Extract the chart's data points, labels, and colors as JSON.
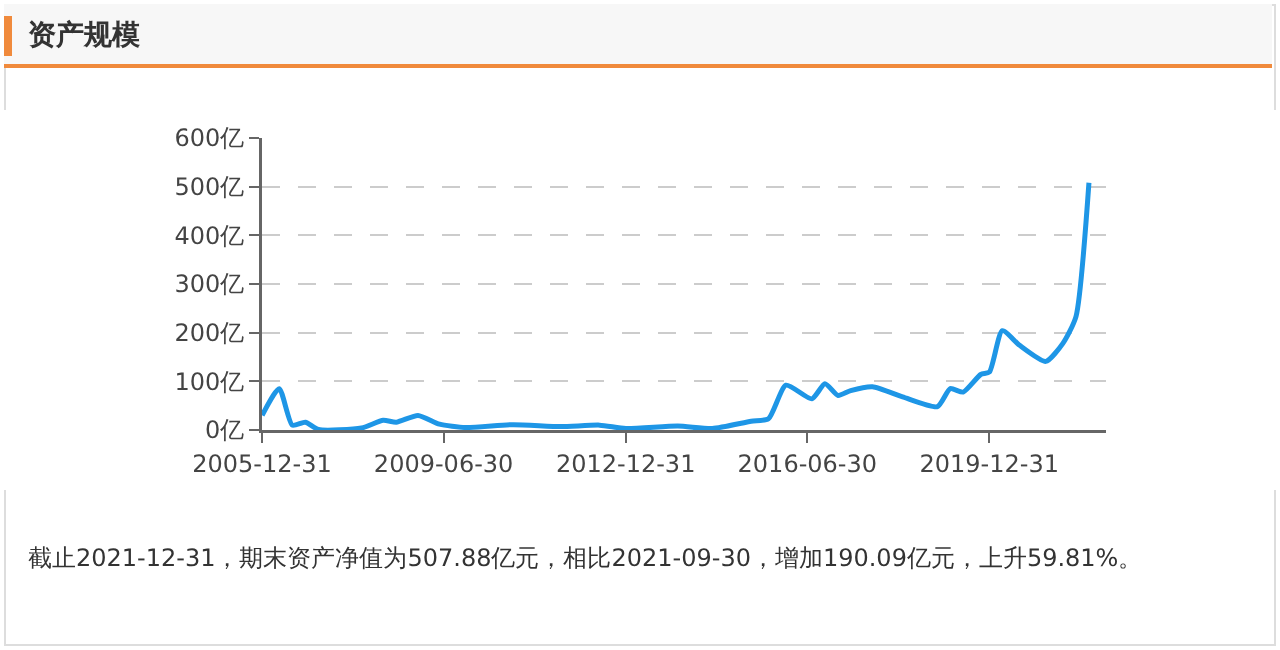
{
  "chart_data": {
    "type": "line",
    "title": "资产规模",
    "x": [
      "2006-01",
      "2006-05",
      "2006-08",
      "2006-11",
      "2007-02",
      "2007-12",
      "2008-05",
      "2008-08",
      "2009-01",
      "2009-06",
      "2009-12",
      "2010-11",
      "2011-10",
      "2012-07",
      "2013-01",
      "2014-01",
      "2014-09",
      "2015-06",
      "2015-10",
      "2016-02",
      "2016-08",
      "2016-11",
      "2017-02",
      "2017-05",
      "2017-10",
      "2018-05",
      "2019-01",
      "2019-04",
      "2019-07",
      "2019-11",
      "2020-01",
      "2020-04",
      "2020-08",
      "2021-02",
      "2021-06",
      "2021-09",
      "2021-12"
    ],
    "series": [
      {
        "color": "#1e96e6",
        "values": [
          30,
          85,
          10,
          16,
          1,
          4,
          20,
          16,
          30,
          12,
          5,
          11,
          7,
          10,
          3,
          8,
          3,
          18,
          23,
          92,
          64,
          95,
          71,
          81,
          89,
          68,
          48,
          85,
          78,
          114,
          119,
          204,
          174,
          141,
          178,
          233,
          508
        ]
      }
    ],
    "xlim": [
      "2005-12-31",
      "2022-03-31"
    ],
    "xticks": [
      {
        "value": "2005-12-31",
        "label": "2005-12-31"
      },
      {
        "value": "2009-06-30",
        "label": "2009-06-30"
      },
      {
        "value": "2012-12-31",
        "label": "2012-12-31"
      },
      {
        "value": "2016-06-30",
        "label": "2016-06-30"
      },
      {
        "value": "2019-12-31",
        "label": "2019-12-31"
      }
    ],
    "ylim": [
      0,
      600
    ],
    "yticks": [
      {
        "value": 0,
        "label": "0亿"
      },
      {
        "value": 100,
        "label": "100亿"
      },
      {
        "value": 200,
        "label": "200亿"
      },
      {
        "value": 300,
        "label": "300亿"
      },
      {
        "value": 400,
        "label": "400亿"
      },
      {
        "value": 500,
        "label": "500亿"
      },
      {
        "value": 600,
        "label": "600亿"
      }
    ],
    "grid": "y",
    "marker": "none",
    "line_style": "solid",
    "annotations": [
      "截止2021-12-31，期末资产净值为507.88亿元，相比2021-09-30，增加190.09亿元，上升59.81%。"
    ]
  }
}
